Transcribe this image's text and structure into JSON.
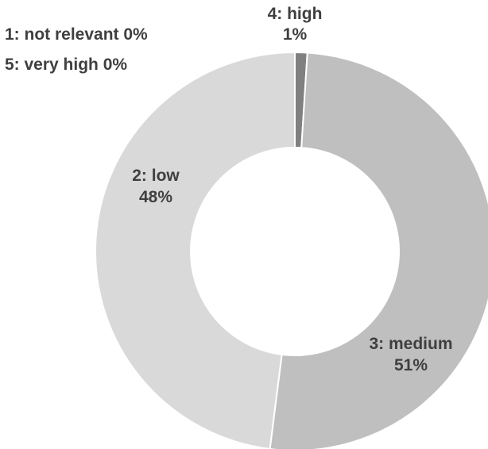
{
  "chart_data": {
    "type": "pie",
    "variant": "donut",
    "title": "",
    "categories": [
      "1: not relevant",
      "2: low",
      "3: medium",
      "4: high",
      "5: very high"
    ],
    "values": [
      0,
      48,
      51,
      1,
      0
    ],
    "value_labels": [
      "0%",
      "48%",
      "51%",
      "1%",
      "0%"
    ],
    "colors": {
      "1: not relevant": "#d9d9d9",
      "2: low": "#d9d9d9",
      "3: medium": "#bfbfbf",
      "4: high": "#808080",
      "5: very high": "#595959"
    },
    "legend": "none",
    "labels": {
      "not_relevant": "1: not relevant 0%",
      "very_high": "5: very high 0%",
      "low_name": "2: low",
      "low_pct": "48%",
      "medium_name": "3: medium",
      "medium_pct": "51%",
      "high_name": "4: high",
      "high_pct": "1%"
    }
  }
}
